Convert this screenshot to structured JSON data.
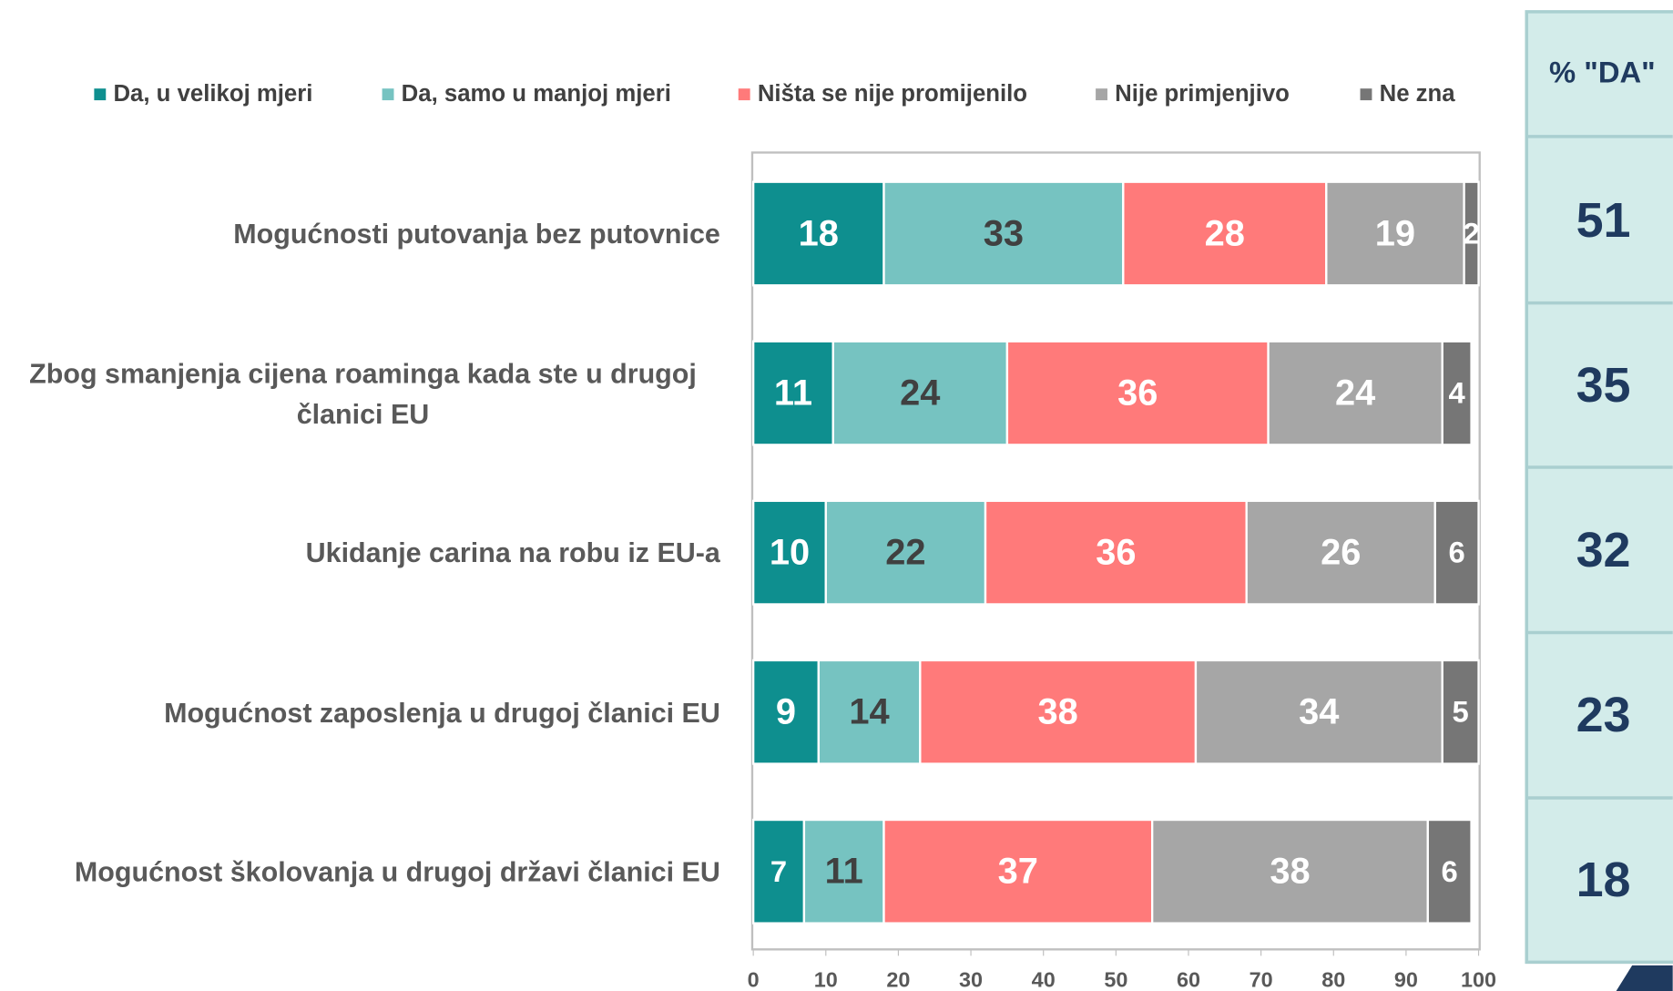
{
  "chart_data": {
    "type": "stacked_barh",
    "categories": [
      "Mogućnosti putovanja bez putovnice",
      "Zbog smanjenja cijena roaminga kada ste u drugoj članici EU",
      "Ukidanje carina na robu iz EU-a",
      "Mogućnost zaposlenja u drugoj članici EU",
      "Mogućnost školovanja u drugoj državi članici EU"
    ],
    "series": [
      {
        "name": "Da, u velikoj mjeri",
        "color": "#0e8f8f",
        "values": [
          18,
          11,
          10,
          9,
          7
        ]
      },
      {
        "name": "Da, samo u manjoj mjeri",
        "color": "#76c3c1",
        "values": [
          33,
          24,
          22,
          14,
          11
        ]
      },
      {
        "name": "Ništa se nije promijenilo",
        "color": "#ff7a7a",
        "values": [
          28,
          36,
          36,
          38,
          37
        ]
      },
      {
        "name": "Nije primjenjivo",
        "color": "#a6a6a6",
        "values": [
          19,
          24,
          26,
          34,
          38
        ]
      },
      {
        "name": "Ne zna",
        "color": "#767676",
        "values": [
          2,
          4,
          6,
          5,
          6
        ]
      }
    ],
    "xlim": [
      0,
      100
    ],
    "xticks": [
      0,
      10,
      20,
      30,
      40,
      50,
      60,
      70,
      80,
      90,
      100
    ],
    "legend": "top"
  },
  "da_panel": {
    "title": "% \"DA\"",
    "values": [
      51,
      35,
      32,
      23,
      18
    ]
  }
}
